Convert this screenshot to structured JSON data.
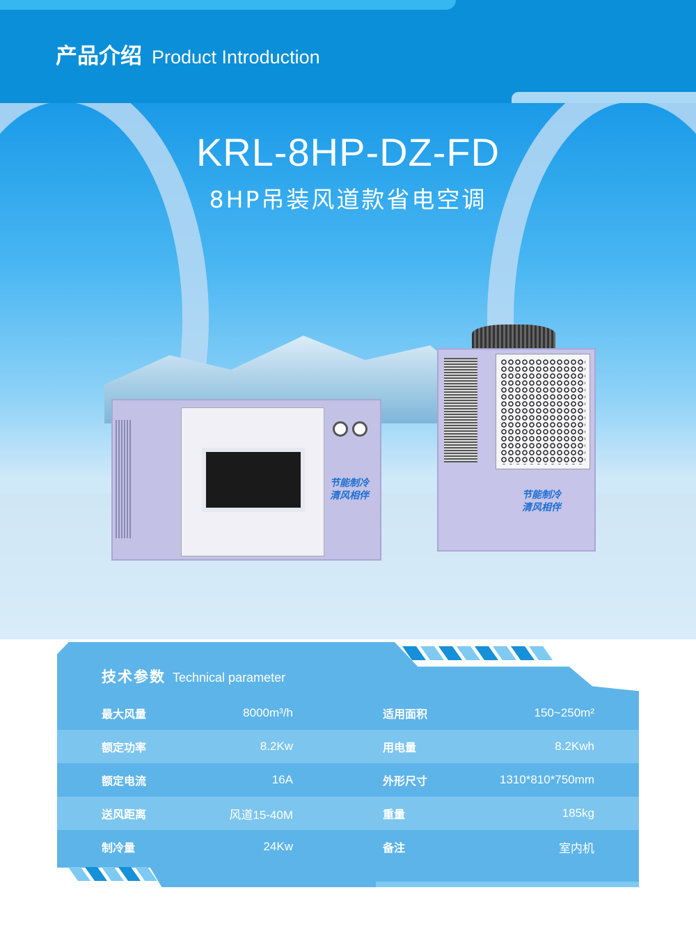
{
  "header": {
    "title_cn": "产品介绍",
    "title_en": "Product Introduction"
  },
  "hero": {
    "model": "KRL-8HP-DZ-FD",
    "subtitle": "8HP吊装风道款省电空调",
    "unit_slogan_line1": "节能制冷",
    "unit_slogan_line2": "清风相伴"
  },
  "params": {
    "title_cn": "技术参数",
    "title_en": "Technical parameter",
    "rows": [
      {
        "k1": "最大风量",
        "v1": "8000m³/h",
        "k2": "适用面积",
        "v2": "150~250m²"
      },
      {
        "k1": "额定功率",
        "v1": "8.2Kw",
        "k2": "用电量",
        "v2": "8.2Kwh"
      },
      {
        "k1": "额定电流",
        "v1": "16A",
        "k2": "外形尺寸",
        "v2": "1310*810*750mm"
      },
      {
        "k1": "送风距离",
        "v1": "风道15-40M",
        "k2": "重量",
        "v2": "185kg"
      },
      {
        "k1": "制冷量",
        "v1": "24Kw",
        "k2": "备注",
        "v2": "室内机"
      }
    ]
  },
  "colors": {
    "header": "#0a8fd8",
    "panel": "#5db4e9",
    "row_alt": "#7cc5ef"
  }
}
